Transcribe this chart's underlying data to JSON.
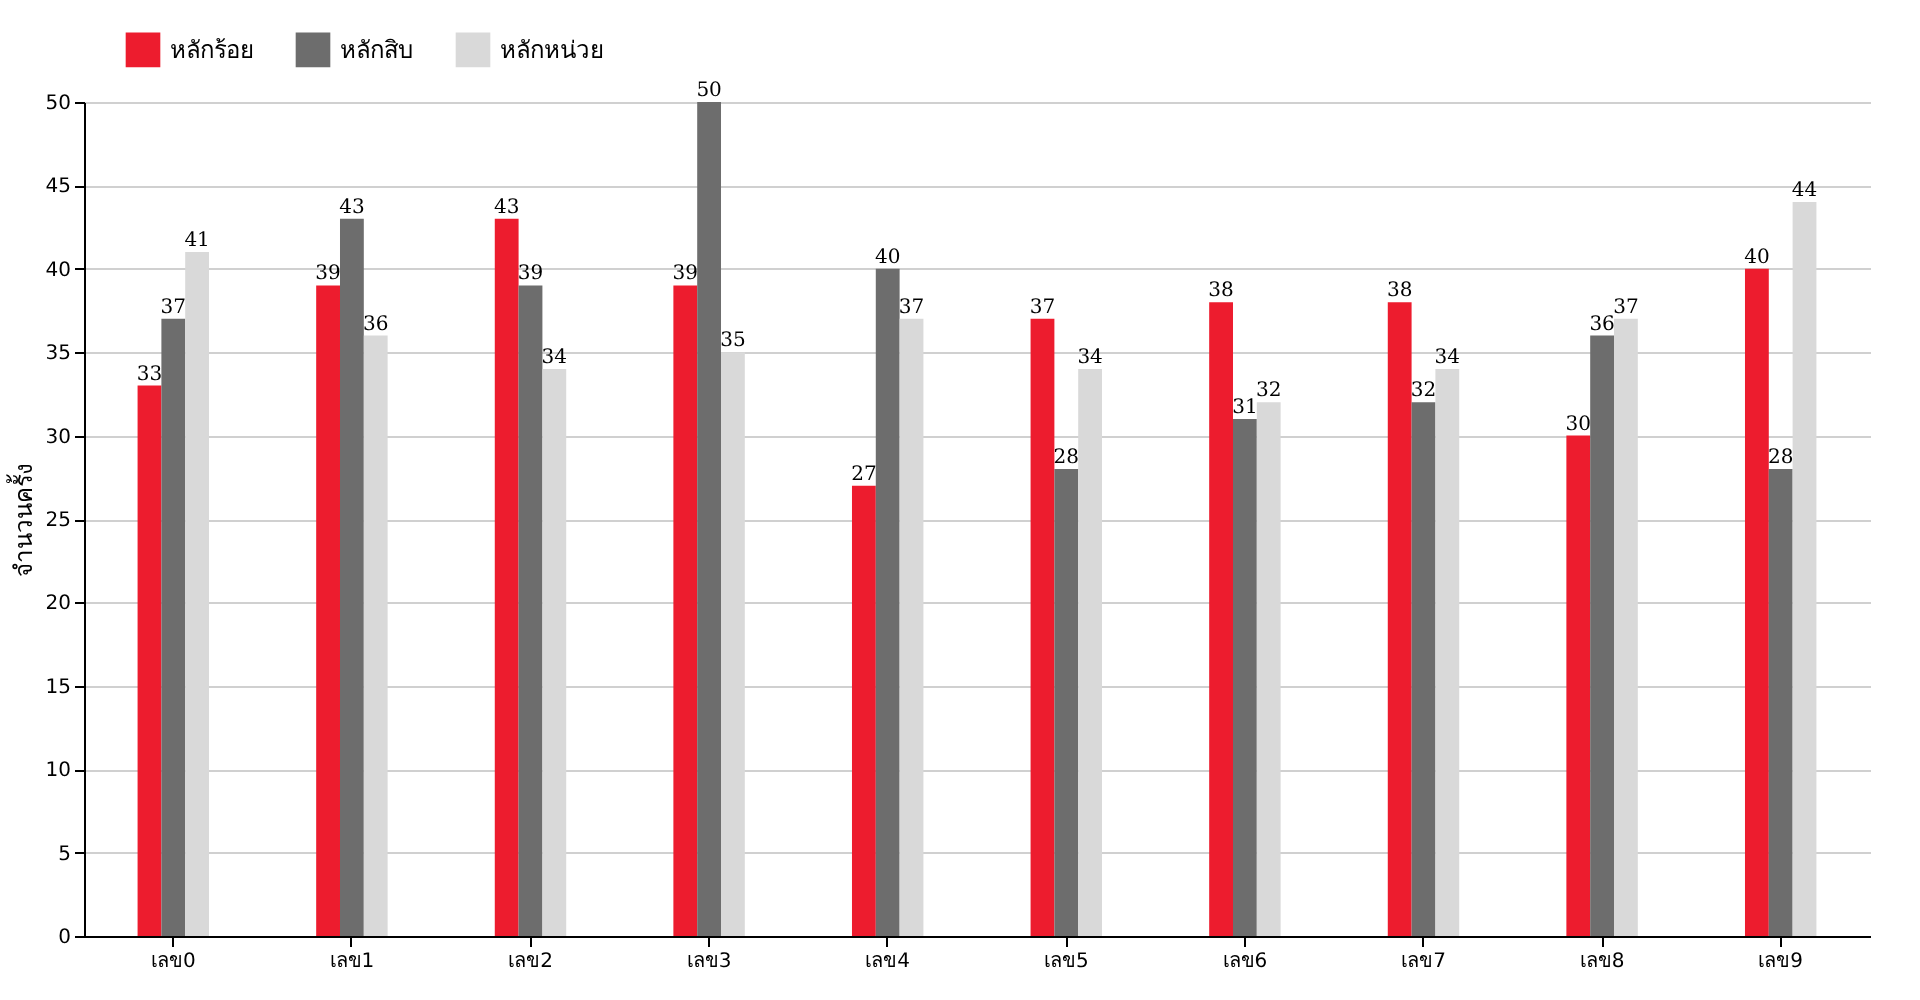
{
  "chart_data": {
    "type": "bar",
    "ylabel": "จำนวนครั้ง",
    "categories": [
      "เลข0",
      "เลข1",
      "เลข2",
      "เลข3",
      "เลข4",
      "เลข5",
      "เลข6",
      "เลข7",
      "เลข8",
      "เลข9"
    ],
    "series": [
      {
        "name": "หลักร้อย",
        "color": "#ed1c2e",
        "values": [
          33,
          39,
          43,
          39,
          27,
          37,
          38,
          38,
          30,
          40
        ]
      },
      {
        "name": "หลักสิบ",
        "color": "#6d6d6d",
        "values": [
          37,
          43,
          39,
          50,
          40,
          28,
          31,
          32,
          36,
          28
        ]
      },
      {
        "name": "หลักหน่วย",
        "color": "#d9d9d9",
        "values": [
          41,
          36,
          34,
          35,
          37,
          34,
          32,
          34,
          37,
          44
        ]
      }
    ],
    "ylim": [
      0,
      50
    ],
    "yticks": [
      0,
      5,
      10,
      15,
      20,
      25,
      30,
      35,
      40,
      45,
      50
    ],
    "grid": "y",
    "legend": "top left",
    "data_labels": true
  }
}
